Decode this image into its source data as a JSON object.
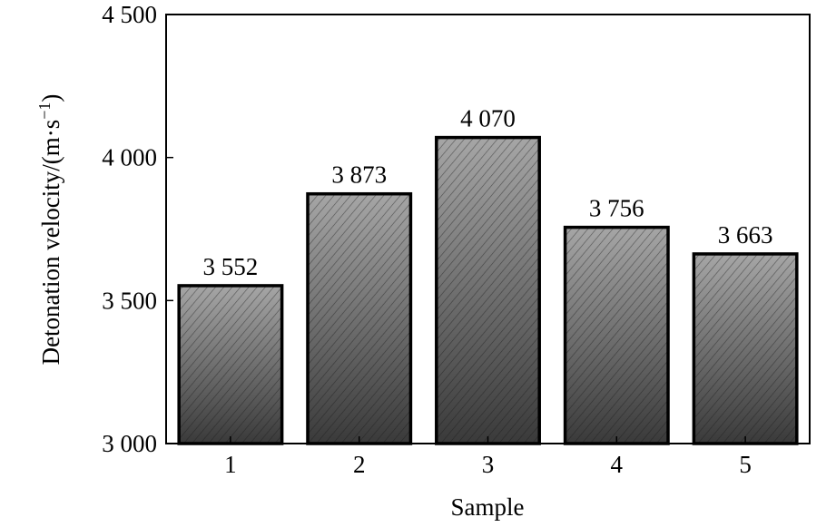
{
  "chart_data": {
    "type": "bar",
    "categories": [
      "1",
      "2",
      "3",
      "4",
      "5"
    ],
    "values": [
      3552,
      3873,
      4070,
      3756,
      3663
    ],
    "data_labels": [
      "3 552",
      "3 873",
      "4 070",
      "3 756",
      "3 663"
    ],
    "title": "",
    "xlabel": "Sample",
    "ylabel": "Detonation velocity/(m·s",
    "ylabel_superscript": "−1",
    "ylabel_suffix": ")",
    "ylim": [
      3000,
      4500
    ],
    "yticks": [
      3000,
      3500,
      4000,
      4500
    ],
    "ytick_labels": [
      "3 000",
      "3 500",
      "4 000",
      "4 500"
    ],
    "grid": false,
    "legend": "none",
    "bar_style": "diagonal hatch over a light-to-dark gray gradient",
    "colors": {
      "bar_top": "#a6a6a6",
      "bar_bottom": "#3a3a3a",
      "hatch": "#1a1a1a",
      "axis": "#000000"
    }
  }
}
